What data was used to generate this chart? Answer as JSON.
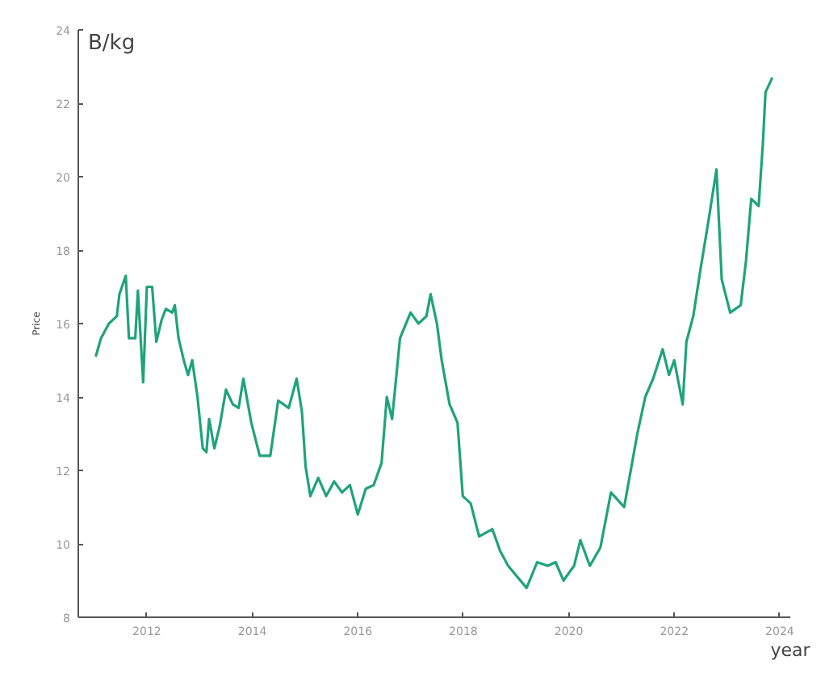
{
  "chart_data": {
    "type": "line",
    "ylabel": "Price",
    "xlabel": "year",
    "annotations": [
      "B/kg"
    ],
    "grid": false,
    "marker": "none",
    "line_style": "solid",
    "xlim": [
      2010.7,
      2024.2
    ],
    "xticks": [
      2012,
      2014,
      2016,
      2018,
      2020,
      2022,
      2024
    ],
    "ylim": [
      8,
      24
    ],
    "yticks": [
      8,
      10,
      12,
      14,
      16,
      18,
      20,
      22,
      24
    ],
    "series": [
      {
        "color": "#1fa37a",
        "x": [
          2011.03,
          2011.13,
          2011.28,
          2011.43,
          2011.48,
          2011.6,
          2011.66,
          2011.78,
          2011.83,
          2011.93,
          2012.0,
          2012.1,
          2012.18,
          2012.28,
          2012.36,
          2012.48,
          2012.53,
          2012.6,
          2012.7,
          2012.78,
          2012.86,
          2012.96,
          2013.06,
          2013.13,
          2013.18,
          2013.28,
          2013.38,
          2013.5,
          2013.63,
          2013.74,
          2013.83,
          2013.98,
          2014.14,
          2014.34,
          2014.49,
          2014.69,
          2014.84,
          2014.94,
          2015.01,
          2015.1,
          2015.25,
          2015.4,
          2015.55,
          2015.7,
          2015.85,
          2016.0,
          2016.15,
          2016.3,
          2016.45,
          2016.55,
          2016.65,
          2016.8,
          2017.0,
          2017.15,
          2017.3,
          2017.38,
          2017.5,
          2017.59,
          2017.74,
          2017.89,
          2017.99,
          2018.14,
          2018.3,
          2018.55,
          2018.7,
          2018.85,
          2019.2,
          2019.4,
          2019.6,
          2019.75,
          2019.9,
          2020.1,
          2020.22,
          2020.4,
          2020.6,
          2020.8,
          2021.05,
          2021.3,
          2021.45,
          2021.6,
          2021.78,
          2021.9,
          2022.0,
          2022.16,
          2022.23,
          2022.36,
          2022.5,
          2022.66,
          2022.8,
          2022.9,
          2023.06,
          2023.26,
          2023.36,
          2023.46,
          2023.6,
          2023.68,
          2023.73,
          2023.86
        ],
        "values": [
          15.1,
          15.6,
          16.0,
          16.2,
          16.8,
          17.3,
          15.6,
          15.6,
          16.9,
          14.4,
          17.0,
          17.0,
          15.5,
          16.1,
          16.4,
          16.3,
          16.5,
          15.6,
          15.0,
          14.6,
          15.0,
          14.0,
          12.6,
          12.5,
          13.4,
          12.6,
          13.2,
          14.2,
          13.8,
          13.7,
          14.5,
          13.3,
          12.4,
          12.4,
          13.9,
          13.7,
          14.5,
          13.6,
          12.1,
          11.3,
          11.8,
          11.3,
          11.7,
          11.4,
          11.6,
          10.8,
          11.5,
          11.6,
          12.2,
          14.0,
          13.4,
          15.6,
          16.3,
          16.0,
          16.2,
          16.8,
          16.0,
          15.0,
          13.8,
          13.3,
          11.3,
          11.1,
          10.2,
          10.4,
          9.8,
          9.4,
          8.8,
          9.5,
          9.4,
          9.5,
          9.0,
          9.4,
          10.1,
          9.4,
          9.9,
          11.4,
          11.0,
          13.0,
          14.0,
          14.5,
          15.3,
          14.6,
          15.0,
          13.8,
          15.5,
          16.2,
          17.5,
          18.9,
          20.2,
          17.2,
          16.3,
          16.5,
          17.7,
          19.4,
          19.2,
          20.9,
          22.3,
          22.7
        ]
      }
    ]
  }
}
